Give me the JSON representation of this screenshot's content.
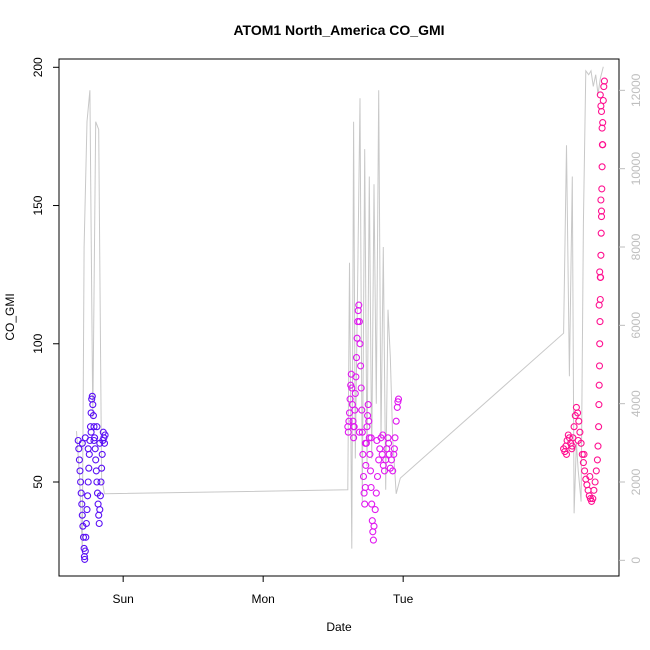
{
  "chart_data": {
    "type": "scatter",
    "title": "ATOM1 North_America CO_GMI",
    "xlabel": "Date",
    "ylabel": "CO_GMI",
    "x_ticks": [
      "Sun",
      "Mon",
      "Tue"
    ],
    "ylim": [
      16,
      203
    ],
    "y_ticks": [
      50,
      100,
      150,
      200
    ],
    "y2lim": [
      -400,
      12800
    ],
    "y2_ticks": [
      0,
      2000,
      4000,
      6000,
      8000,
      10000,
      12000
    ],
    "grid": false,
    "legend": "none",
    "colors": {
      "axis": "#000000",
      "secondary_axis": "#bebebe",
      "secondary_line": "#c8c8c8",
      "flight1": "#5a10f5",
      "flight2": "#e018f0",
      "flight3": "#ff1090"
    },
    "time_note": "x in hours from Saturday 00:00",
    "series": [
      {
        "role": "co_points_flight1",
        "points": [
          [
            40.3,
            65
          ],
          [
            40.4,
            62
          ],
          [
            40.5,
            58
          ],
          [
            40.6,
            54
          ],
          [
            40.7,
            50
          ],
          [
            40.8,
            46
          ],
          [
            40.9,
            42
          ],
          [
            41.0,
            38
          ],
          [
            41.1,
            34
          ],
          [
            41.2,
            30
          ],
          [
            41.3,
            26
          ],
          [
            41.35,
            23
          ],
          [
            41.4,
            22
          ],
          [
            41.5,
            25
          ],
          [
            41.6,
            30
          ],
          [
            41.7,
            35
          ],
          [
            41.8,
            40
          ],
          [
            41.9,
            45
          ],
          [
            42.0,
            50
          ],
          [
            42.1,
            55
          ],
          [
            42.2,
            60
          ],
          [
            42.3,
            65
          ],
          [
            42.4,
            70
          ],
          [
            42.5,
            75
          ],
          [
            42.6,
            80
          ],
          [
            42.7,
            81
          ],
          [
            42.8,
            78
          ],
          [
            42.9,
            74
          ],
          [
            43.0,
            70
          ],
          [
            43.1,
            66
          ],
          [
            43.2,
            62
          ],
          [
            43.3,
            58
          ],
          [
            43.4,
            54
          ],
          [
            43.5,
            50
          ],
          [
            43.6,
            46
          ],
          [
            43.7,
            42
          ],
          [
            43.8,
            38
          ],
          [
            43.9,
            35
          ],
          [
            44.0,
            40
          ],
          [
            44.1,
            45
          ],
          [
            44.2,
            50
          ],
          [
            44.3,
            55
          ],
          [
            44.4,
            60
          ],
          [
            44.5,
            65
          ],
          [
            44.6,
            68
          ],
          [
            44.7,
            66
          ],
          [
            44.8,
            64
          ],
          [
            44.9,
            67
          ],
          [
            41.0,
            64
          ],
          [
            41.5,
            66
          ],
          [
            42.0,
            62
          ],
          [
            42.5,
            68
          ],
          [
            43.0,
            65
          ],
          [
            43.5,
            70
          ],
          [
            44.0,
            64
          ]
        ]
      },
      {
        "role": "co_points_flight2",
        "points": [
          [
            86.5,
            70
          ],
          [
            86.6,
            68
          ],
          [
            86.7,
            72
          ],
          [
            86.8,
            75
          ],
          [
            86.9,
            80
          ],
          [
            87.0,
            85
          ],
          [
            87.1,
            89
          ],
          [
            87.2,
            84
          ],
          [
            87.3,
            78
          ],
          [
            87.4,
            72
          ],
          [
            87.5,
            66
          ],
          [
            87.6,
            70
          ],
          [
            87.7,
            76
          ],
          [
            87.8,
            82
          ],
          [
            87.9,
            88
          ],
          [
            88.0,
            95
          ],
          [
            88.1,
            102
          ],
          [
            88.2,
            108
          ],
          [
            88.3,
            112
          ],
          [
            88.4,
            114
          ],
          [
            88.5,
            108
          ],
          [
            88.6,
            100
          ],
          [
            88.7,
            92
          ],
          [
            88.8,
            84
          ],
          [
            88.9,
            76
          ],
          [
            89.0,
            68
          ],
          [
            89.1,
            60
          ],
          [
            89.2,
            52
          ],
          [
            89.3,
            46
          ],
          [
            89.4,
            42
          ],
          [
            89.5,
            48
          ],
          [
            89.6,
            56
          ],
          [
            89.7,
            64
          ],
          [
            89.8,
            70
          ],
          [
            89.9,
            74
          ],
          [
            90.0,
            78
          ],
          [
            90.1,
            72
          ],
          [
            90.2,
            66
          ],
          [
            90.3,
            60
          ],
          [
            90.4,
            54
          ],
          [
            90.5,
            48
          ],
          [
            90.6,
            42
          ],
          [
            90.7,
            36
          ],
          [
            90.8,
            32
          ],
          [
            90.9,
            29
          ],
          [
            91.0,
            34
          ],
          [
            91.2,
            40
          ],
          [
            91.4,
            46
          ],
          [
            91.6,
            52
          ],
          [
            91.8,
            58
          ],
          [
            92.0,
            62
          ],
          [
            92.2,
            66
          ],
          [
            92.4,
            60
          ],
          [
            92.6,
            56
          ],
          [
            92.8,
            54
          ],
          [
            93.0,
            58
          ],
          [
            93.2,
            62
          ],
          [
            93.4,
            66
          ],
          [
            93.6,
            60
          ],
          [
            93.8,
            55
          ],
          [
            94.0,
            58
          ],
          [
            94.2,
            54
          ],
          [
            94.4,
            60
          ],
          [
            94.6,
            66
          ],
          [
            94.8,
            72
          ],
          [
            95.0,
            77
          ],
          [
            95.1,
            79
          ],
          [
            95.2,
            80
          ],
          [
            87.5,
            70
          ],
          [
            88.5,
            68
          ],
          [
            89.5,
            64
          ],
          [
            90.5,
            66
          ],
          [
            91.5,
            65
          ],
          [
            92.5,
            67
          ],
          [
            93.5,
            64
          ],
          [
            94.5,
            62
          ]
        ]
      },
      {
        "role": "co_points_flight3",
        "points": [
          [
            123.5,
            62
          ],
          [
            123.7,
            61
          ],
          [
            123.9,
            63
          ],
          [
            124.1,
            65
          ],
          [
            124.3,
            67
          ],
          [
            124.5,
            66
          ],
          [
            124.7,
            64
          ],
          [
            124.9,
            62
          ],
          [
            125.1,
            66
          ],
          [
            125.3,
            70
          ],
          [
            125.5,
            74
          ],
          [
            125.7,
            77
          ],
          [
            125.9,
            75
          ],
          [
            126.1,
            72
          ],
          [
            126.3,
            68
          ],
          [
            126.5,
            64
          ],
          [
            126.7,
            60
          ],
          [
            126.9,
            57
          ],
          [
            127.1,
            54
          ],
          [
            127.3,
            51
          ],
          [
            127.5,
            49
          ],
          [
            127.7,
            47
          ],
          [
            127.9,
            45
          ],
          [
            128.1,
            44
          ],
          [
            128.3,
            43
          ],
          [
            128.5,
            44
          ],
          [
            128.7,
            47
          ],
          [
            128.9,
            50
          ],
          [
            129.1,
            54
          ],
          [
            129.3,
            58
          ],
          [
            129.4,
            63
          ],
          [
            129.5,
            70
          ],
          [
            129.55,
            78
          ],
          [
            129.6,
            85
          ],
          [
            129.65,
            92
          ],
          [
            129.7,
            100
          ],
          [
            129.75,
            108
          ],
          [
            129.8,
            116
          ],
          [
            129.85,
            124
          ],
          [
            129.9,
            132
          ],
          [
            129.95,
            140
          ],
          [
            130.0,
            148
          ],
          [
            130.05,
            156
          ],
          [
            130.1,
            164
          ],
          [
            130.15,
            172
          ],
          [
            130.2,
            180
          ],
          [
            130.3,
            188
          ],
          [
            130.4,
            193
          ],
          [
            130.5,
            195
          ],
          [
            129.8,
            190
          ],
          [
            129.9,
            186
          ],
          [
            130.0,
            184
          ],
          [
            130.1,
            178
          ],
          [
            130.2,
            172
          ],
          [
            129.7,
            126
          ],
          [
            129.8,
            124
          ],
          [
            129.6,
            114
          ],
          [
            129.9,
            152
          ],
          [
            130.0,
            146
          ],
          [
            124.0,
            60
          ],
          [
            125.0,
            63
          ],
          [
            126.0,
            65
          ],
          [
            127.0,
            60
          ],
          [
            128.0,
            52
          ]
        ]
      },
      {
        "role": "secondary_axis_line",
        "axis": "right",
        "points": [
          [
            40.0,
            3300
          ],
          [
            40.5,
            2200
          ],
          [
            41.0,
            300
          ],
          [
            41.3,
            8000
          ],
          [
            41.8,
            11200
          ],
          [
            42.3,
            12000
          ],
          [
            42.8,
            3600
          ],
          [
            43.3,
            11200
          ],
          [
            43.8,
            11000
          ],
          [
            44.3,
            2100
          ],
          [
            44.8,
            1700
          ],
          [
            86.5,
            1800
          ],
          [
            86.8,
            7600
          ],
          [
            87.2,
            300
          ],
          [
            87.5,
            11200
          ],
          [
            87.8,
            2600
          ],
          [
            88.2,
            7200
          ],
          [
            88.6,
            11800
          ],
          [
            89.0,
            1500
          ],
          [
            89.4,
            10500
          ],
          [
            89.8,
            2400
          ],
          [
            90.2,
            9800
          ],
          [
            90.6,
            2600
          ],
          [
            91.0,
            9600
          ],
          [
            91.4,
            4000
          ],
          [
            91.8,
            12000
          ],
          [
            92.2,
            3100
          ],
          [
            92.6,
            8000
          ],
          [
            93.0,
            1800
          ],
          [
            93.4,
            6400
          ],
          [
            93.8,
            5200
          ],
          [
            94.2,
            3100
          ],
          [
            94.8,
            1700
          ],
          [
            95.5,
            2100
          ],
          [
            123.5,
            5800
          ],
          [
            124.0,
            10600
          ],
          [
            124.5,
            4700
          ],
          [
            125.0,
            9800
          ],
          [
            125.3,
            1200
          ],
          [
            125.7,
            3000
          ],
          [
            126.0,
            2300
          ],
          [
            126.5,
            1500
          ],
          [
            126.9,
            8600
          ],
          [
            127.3,
            12500
          ],
          [
            127.8,
            12400
          ],
          [
            128.2,
            12500
          ],
          [
            128.6,
            12100
          ],
          [
            129.0,
            12400
          ],
          [
            129.4,
            11900
          ],
          [
            129.8,
            12300
          ],
          [
            130.3,
            12600
          ]
        ]
      }
    ]
  }
}
